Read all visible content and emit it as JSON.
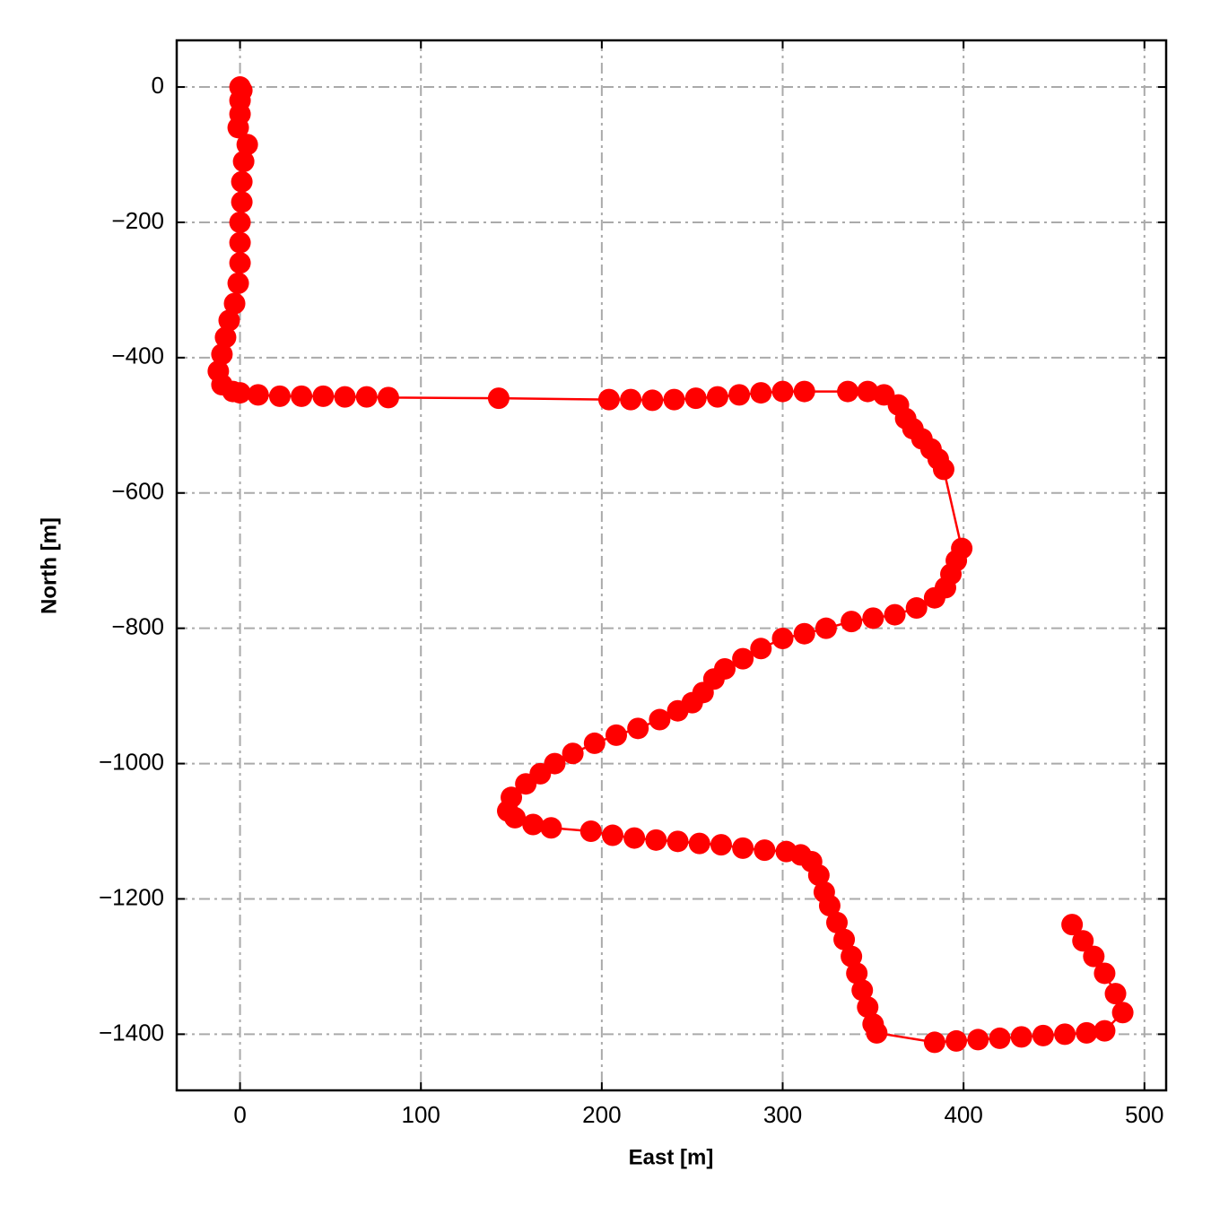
{
  "chart_data": {
    "type": "line",
    "xlabel": "East [m]",
    "ylabel": "North [m]",
    "color": "#ff0000",
    "grid": true,
    "markers": true,
    "xlim": [
      -35,
      512
    ],
    "ylim": [
      -1483,
      69
    ],
    "xticks": [
      0,
      100,
      200,
      300,
      400,
      500
    ],
    "yticks": [
      0,
      {
        "value": -200,
        "label": "−200"
      },
      {
        "value": -400,
        "label": "−400"
      },
      {
        "value": -600,
        "label": "−600"
      },
      {
        "value": -800,
        "label": "−800"
      },
      {
        "value": -1000,
        "label": "−1000"
      },
      {
        "value": -1200,
        "label": "−1200"
      },
      {
        "value": -1400,
        "label": "−1400"
      }
    ],
    "x": [
      0,
      1,
      0,
      0,
      -1,
      4,
      2,
      1,
      1,
      0,
      0,
      0,
      -1,
      -3,
      -6,
      -8,
      -10,
      -12,
      -10,
      -4,
      0,
      10,
      22,
      34,
      46,
      58,
      70,
      82,
      143,
      204,
      216,
      228,
      240,
      252,
      264,
      276,
      288,
      300,
      312,
      336,
      347,
      356,
      364,
      368,
      372,
      377,
      382,
      386,
      389,
      399,
      396,
      393,
      390,
      384,
      374,
      362,
      350,
      338,
      324,
      312,
      300,
      288,
      278,
      268,
      262,
      256,
      250,
      242,
      232,
      220,
      208,
      196,
      184,
      174,
      166,
      158,
      150,
      148,
      152,
      162,
      172,
      194,
      206,
      218,
      230,
      242,
      254,
      266,
      278,
      290,
      302,
      310,
      316,
      320,
      323,
      326,
      330,
      334,
      338,
      341,
      344,
      347,
      350,
      352,
      384,
      396,
      408,
      420,
      432,
      444,
      456,
      468,
      478,
      488,
      484,
      478,
      472,
      466,
      460
    ],
    "values": [
      0,
      -5,
      -20,
      -40,
      -60,
      -85,
      -110,
      -140,
      -170,
      -200,
      -230,
      -260,
      -290,
      -320,
      -345,
      -370,
      -395,
      -420,
      -440,
      -450,
      -452,
      -455,
      -457,
      -457,
      -457,
      -458,
      -458,
      -459,
      -460,
      -462,
      -462,
      -463,
      -462,
      -460,
      -458,
      -455,
      -452,
      -450,
      -450,
      -450,
      -450,
      -455,
      -470,
      -490,
      -505,
      -520,
      -535,
      -550,
      -565,
      -682,
      -700,
      -720,
      -740,
      -755,
      -770,
      -780,
      -785,
      -790,
      -800,
      -808,
      -815,
      -830,
      -845,
      -860,
      -875,
      -895,
      -910,
      -922,
      -935,
      -948,
      -958,
      -970,
      -985,
      -1000,
      -1015,
      -1030,
      -1050,
      -1070,
      -1080,
      -1090,
      -1095,
      -1100,
      -1106,
      -1110,
      -1113,
      -1115,
      -1118,
      -1120,
      -1125,
      -1128,
      -1130,
      -1135,
      -1145,
      -1165,
      -1190,
      -1210,
      -1235,
      -1260,
      -1285,
      -1310,
      -1335,
      -1360,
      -1385,
      -1398,
      -1412,
      -1410,
      -1408,
      -1406,
      -1404,
      -1402,
      -1400,
      -1398,
      -1395,
      -1368,
      -1340,
      -1310,
      -1285,
      -1262,
      -1238
    ]
  }
}
